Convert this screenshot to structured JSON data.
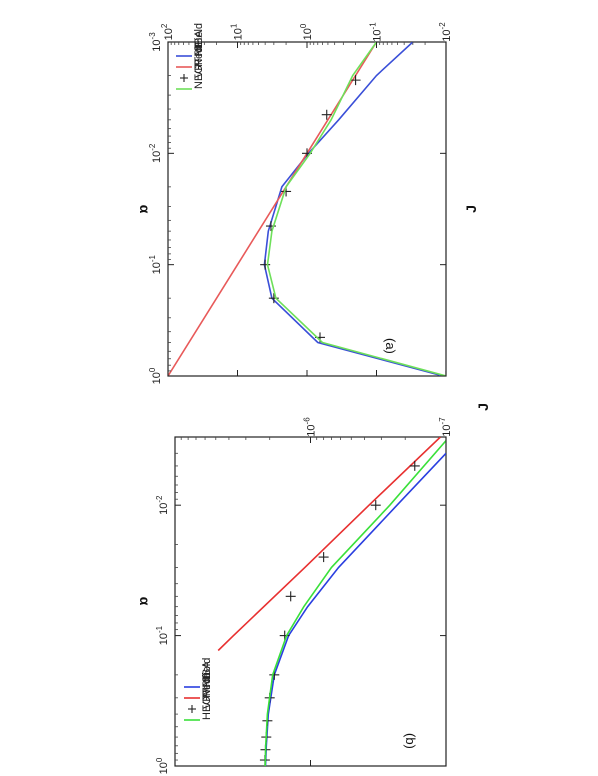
{
  "chart_data": [
    {
      "type": "line",
      "panel_label": "(a)",
      "xlabel": "α",
      "ylabel": "J",
      "xscale": "log",
      "yscale": "log",
      "xlim": [
        0.001,
        1
      ],
      "ylim": [
        0.01,
        100
      ],
      "xticks": [
        0.001,
        0.01,
        0.1,
        1
      ],
      "xtick_labels": [
        "10^-3",
        "10^-2",
        "10^-1",
        "10^0"
      ],
      "yticks": [
        0.01,
        0.1,
        1,
        10,
        100
      ],
      "ytick_labels": [
        "10^-2",
        "10^-1",
        "10^0",
        "10^1",
        "10^2"
      ],
      "legend_position": "top-right",
      "series": [
        {
          "name": "NIBA",
          "color": "#3a4fd8",
          "style": "line",
          "x": [
            0.001,
            0.002,
            0.005,
            0.01,
            0.02,
            0.05,
            0.1,
            0.2,
            0.5,
            1.0
          ],
          "y": [
            0.03,
            0.1,
            0.35,
            0.95,
            2.3,
            3.6,
            4.1,
            3.2,
            0.7,
            0.011
          ]
        },
        {
          "name": "RedField",
          "color": "#e85a5a",
          "style": "line",
          "x": [
            0.001,
            0.01,
            0.1,
            1.0
          ],
          "y": [
            0.1,
            1.0,
            10.0,
            100.0
          ]
        },
        {
          "name": "VPTRE",
          "color": "#222222",
          "style": "marker",
          "x": [
            0.0022,
            0.0045,
            0.01,
            0.022,
            0.045,
            0.1,
            0.2,
            0.45,
            1.0
          ],
          "y": [
            0.2,
            0.52,
            1.0,
            2.0,
            3.3,
            4.0,
            3.0,
            0.65,
            0.01
          ]
        },
        {
          "name": "NEGF",
          "color": "#6ee05a",
          "style": "line",
          "x": [
            0.001,
            0.002,
            0.005,
            0.01,
            0.02,
            0.05,
            0.1,
            0.2,
            0.5,
            1.0
          ],
          "y": [
            0.1,
            0.22,
            0.45,
            0.9,
            2.0,
            3.2,
            3.7,
            2.8,
            0.6,
            0.01
          ]
        }
      ]
    },
    {
      "type": "line",
      "panel_label": "(b)",
      "xlabel": "α",
      "ylabel": "J",
      "xscale": "log",
      "yscale": "log",
      "xlim": [
        0.003,
        1
      ],
      "ylim": [
        1e-07,
        1e-05
      ],
      "xticks": [
        0.01,
        0.1,
        1
      ],
      "xtick_labels": [
        "10^-2",
        "10^-1",
        "10^0"
      ],
      "yticks": [
        1e-07,
        1e-06
      ],
      "ytick_labels": [
        "10^-7",
        "10^-6"
      ],
      "legend_position": "top-right",
      "series": [
        {
          "name": "NIBA",
          "color": "#2a3fe0",
          "style": "line",
          "x": [
            0.004,
            0.01,
            0.03,
            0.06,
            0.1,
            0.2,
            0.4,
            0.7,
            1.0
          ],
          "y": [
            1e-07,
            2.3e-07,
            6.2e-07,
            1.05e-06,
            1.45e-06,
            1.85e-06,
            2.05e-06,
            2.12e-06,
            2.15e-06
          ]
        },
        {
          "name": "Redfield",
          "color": "#e83030",
          "style": "line",
          "x": [
            0.003,
            0.01,
            0.03,
            0.1,
            0.13
          ],
          "y": [
            1.1e-07,
            3.7e-07,
            1.1e-06,
            3.7e-06,
            4.8e-06
          ]
        },
        {
          "name": "VPTRE",
          "color": "#222222",
          "style": "marker",
          "x": [
            0.005,
            0.01,
            0.025,
            0.05,
            0.1,
            0.2,
            0.3,
            0.45,
            0.6,
            0.75,
            0.9
          ],
          "y": [
            1.7e-07,
            3.3e-07,
            8e-07,
            1.4e-06,
            1.55e-06,
            1.85e-06,
            2e-06,
            2.08e-06,
            2.12e-06,
            2.15e-06,
            2.17e-06
          ]
        },
        {
          "name": "HEOM",
          "color": "#3ae03a",
          "style": "line",
          "x": [
            0.0032,
            0.01,
            0.03,
            0.06,
            0.1,
            0.2,
            0.4,
            0.7,
            1.0
          ],
          "y": [
            1e-07,
            2.6e-07,
            7e-07,
            1.12e-06,
            1.5e-06,
            1.9e-06,
            2.08e-06,
            2.14e-06,
            2.16e-06
          ]
        }
      ]
    }
  ]
}
